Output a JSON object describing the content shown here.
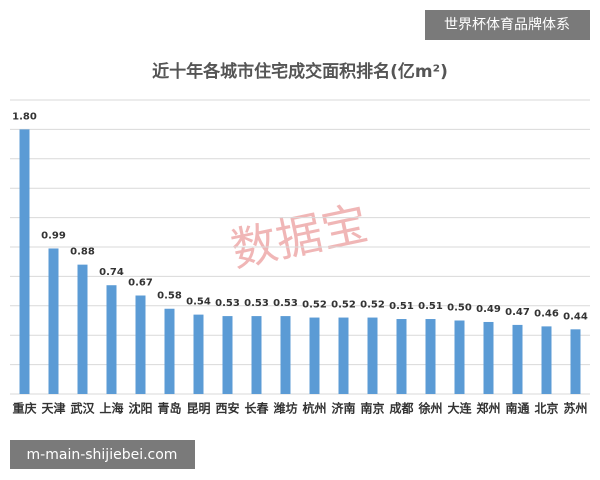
{
  "chart_data": {
    "type": "bar",
    "title": "近十年各城市住宅成交面积排名(亿m²)",
    "categories": [
      "重庆",
      "天津",
      "武汉",
      "上海",
      "沈阳",
      "青岛",
      "昆明",
      "西安",
      "长春",
      "潍坊",
      "杭州",
      "济南",
      "南京",
      "成都",
      "徐州",
      "大连",
      "郑州",
      "南通",
      "北京",
      "苏州"
    ],
    "values": [
      1.8,
      0.99,
      0.88,
      0.74,
      0.67,
      0.58,
      0.54,
      0.53,
      0.53,
      0.53,
      0.52,
      0.52,
      0.52,
      0.51,
      0.51,
      0.5,
      0.49,
      0.47,
      0.46,
      0.44
    ],
    "value_labels": [
      "1.80",
      "0.99",
      "0.88",
      "0.74",
      "0.67",
      "0.58",
      "0.54",
      "0.53",
      "0.53",
      "0.53",
      "0.52",
      "0.52",
      "0.52",
      "0.51",
      "0.51",
      "0.50",
      "0.49",
      "0.47",
      "0.46",
      "0.44"
    ],
    "color": "#5b9bd5",
    "ylim": [
      0,
      2.0
    ],
    "yticks": [
      0,
      0.2,
      0.4,
      0.6,
      0.8,
      1,
      1.2,
      1.4,
      1.6,
      1.8,
      2
    ],
    "grid": true,
    "show_tick_labels": false
  },
  "watermarks": {
    "top_right": "世界杯体育品牌体系",
    "bottom_left": "m-main-shijiebei.com",
    "center": "数据宝"
  }
}
